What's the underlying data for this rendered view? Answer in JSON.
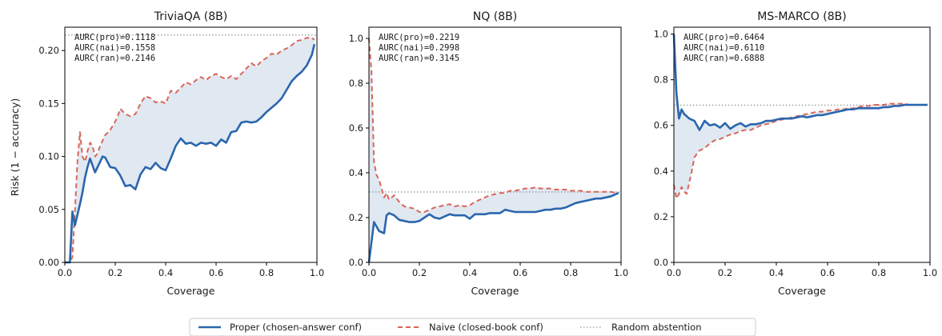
{
  "colors": {
    "proper": "#2b66ad",
    "naive": "#d9665a",
    "random": "#999999",
    "fill": "#dde6f1"
  },
  "legend": {
    "proper": "Proper (chosen-answer conf)",
    "naive": "Naive (closed-book conf)",
    "random": "Random abstention"
  },
  "chart_data": [
    {
      "type": "line",
      "title": "TriviaQA (8B)",
      "xlabel": "Coverage",
      "ylabel": "Risk (1 − accuracy)",
      "xlim": [
        0,
        1.0
      ],
      "ylim": [
        0,
        0.222
      ],
      "xticks": [
        "0.0",
        "0.2",
        "0.4",
        "0.6",
        "0.8",
        "1.0"
      ],
      "yticks": [
        0,
        0.05,
        0.1,
        0.15,
        0.2
      ],
      "ytick_labels": [
        "0.00",
        "0.05",
        "0.10",
        "0.15",
        "0.20"
      ],
      "random_risk": 0.2146,
      "annotations": [
        "AURC(pro)=0.1118",
        "AURC(nai)=0.1558",
        "AURC(ran)=0.2146"
      ],
      "series": [
        {
          "name": "Proper (chosen-answer conf)",
          "key": "proper",
          "x": [
            0.0,
            0.02,
            0.03,
            0.04,
            0.05,
            0.06,
            0.07,
            0.08,
            0.09,
            0.1,
            0.12,
            0.14,
            0.15,
            0.16,
            0.18,
            0.2,
            0.22,
            0.24,
            0.26,
            0.28,
            0.29,
            0.3,
            0.32,
            0.34,
            0.36,
            0.38,
            0.4,
            0.42,
            0.44,
            0.46,
            0.48,
            0.5,
            0.52,
            0.54,
            0.56,
            0.58,
            0.6,
            0.62,
            0.64,
            0.66,
            0.68,
            0.7,
            0.72,
            0.74,
            0.76,
            0.78,
            0.8,
            0.82,
            0.84,
            0.86,
            0.88,
            0.9,
            0.92,
            0.94,
            0.96,
            0.98,
            0.99
          ],
          "y": [
            0.0,
            0.0,
            0.048,
            0.035,
            0.045,
            0.055,
            0.066,
            0.08,
            0.09,
            0.098,
            0.085,
            0.095,
            0.1,
            0.099,
            0.09,
            0.089,
            0.082,
            0.072,
            0.073,
            0.069,
            0.076,
            0.083,
            0.09,
            0.088,
            0.094,
            0.089,
            0.087,
            0.098,
            0.11,
            0.117,
            0.112,
            0.113,
            0.11,
            0.113,
            0.112,
            0.113,
            0.11,
            0.116,
            0.113,
            0.123,
            0.124,
            0.132,
            0.133,
            0.132,
            0.133,
            0.137,
            0.142,
            0.146,
            0.15,
            0.155,
            0.163,
            0.171,
            0.176,
            0.18,
            0.186,
            0.196,
            0.206
          ]
        },
        {
          "name": "Naive (closed-book conf)",
          "key": "naive",
          "x": [
            0.0,
            0.02,
            0.03,
            0.04,
            0.05,
            0.06,
            0.07,
            0.08,
            0.09,
            0.1,
            0.11,
            0.12,
            0.13,
            0.14,
            0.15,
            0.16,
            0.18,
            0.2,
            0.21,
            0.22,
            0.24,
            0.26,
            0.28,
            0.3,
            0.32,
            0.34,
            0.36,
            0.38,
            0.4,
            0.42,
            0.44,
            0.46,
            0.48,
            0.5,
            0.52,
            0.54,
            0.56,
            0.58,
            0.6,
            0.62,
            0.64,
            0.66,
            0.68,
            0.7,
            0.72,
            0.74,
            0.76,
            0.78,
            0.8,
            0.82,
            0.84,
            0.86,
            0.88,
            0.9,
            0.92,
            0.94,
            0.96,
            0.98,
            0.99
          ],
          "y": [
            0.0,
            0.0,
            0.005,
            0.048,
            0.095,
            0.123,
            0.1,
            0.095,
            0.105,
            0.113,
            0.11,
            0.1,
            0.103,
            0.11,
            0.115,
            0.12,
            0.125,
            0.133,
            0.138,
            0.145,
            0.14,
            0.138,
            0.14,
            0.15,
            0.157,
            0.155,
            0.151,
            0.152,
            0.15,
            0.162,
            0.16,
            0.165,
            0.17,
            0.168,
            0.172,
            0.175,
            0.172,
            0.176,
            0.178,
            0.175,
            0.173,
            0.176,
            0.173,
            0.178,
            0.183,
            0.188,
            0.185,
            0.19,
            0.193,
            0.197,
            0.196,
            0.2,
            0.202,
            0.205,
            0.209,
            0.21,
            0.212,
            0.212,
            0.21
          ]
        }
      ]
    },
    {
      "type": "line",
      "title": "NQ (8B)",
      "xlabel": "Coverage",
      "ylabel": "",
      "xlim": [
        0,
        1.0
      ],
      "ylim": [
        0,
        1.05
      ],
      "xticks": [
        "0.0",
        "0.2",
        "0.4",
        "0.6",
        "0.8",
        "1.0"
      ],
      "yticks": [
        0,
        0.2,
        0.4,
        0.6,
        0.8,
        1.0
      ],
      "ytick_labels": [
        "0.0",
        "0.2",
        "0.4",
        "0.6",
        "0.8",
        "1.0"
      ],
      "random_risk": 0.3145,
      "annotations": [
        "AURC(pro)=0.2219",
        "AURC(nai)=0.2998",
        "AURC(ran)=0.3145"
      ],
      "series": [
        {
          "name": "Proper (chosen-answer conf)",
          "key": "proper",
          "x": [
            0.0,
            0.02,
            0.04,
            0.06,
            0.07,
            0.08,
            0.1,
            0.12,
            0.14,
            0.16,
            0.18,
            0.2,
            0.22,
            0.24,
            0.26,
            0.28,
            0.3,
            0.32,
            0.34,
            0.36,
            0.38,
            0.4,
            0.42,
            0.44,
            0.46,
            0.48,
            0.5,
            0.52,
            0.54,
            0.56,
            0.58,
            0.6,
            0.62,
            0.64,
            0.66,
            0.68,
            0.7,
            0.72,
            0.74,
            0.76,
            0.78,
            0.8,
            0.82,
            0.84,
            0.86,
            0.88,
            0.9,
            0.92,
            0.94,
            0.96,
            0.98,
            0.99
          ],
          "y": [
            0.0,
            0.18,
            0.14,
            0.13,
            0.21,
            0.22,
            0.21,
            0.19,
            0.185,
            0.18,
            0.18,
            0.185,
            0.2,
            0.215,
            0.2,
            0.195,
            0.205,
            0.215,
            0.21,
            0.21,
            0.21,
            0.195,
            0.215,
            0.215,
            0.215,
            0.22,
            0.22,
            0.22,
            0.235,
            0.23,
            0.225,
            0.225,
            0.225,
            0.225,
            0.225,
            0.23,
            0.235,
            0.235,
            0.24,
            0.24,
            0.245,
            0.255,
            0.265,
            0.27,
            0.275,
            0.28,
            0.285,
            0.285,
            0.29,
            0.295,
            0.305,
            0.31
          ]
        },
        {
          "name": "Naive (closed-book conf)",
          "key": "naive",
          "x": [
            0.0,
            0.01,
            0.02,
            0.03,
            0.04,
            0.05,
            0.06,
            0.07,
            0.08,
            0.1,
            0.12,
            0.14,
            0.16,
            0.18,
            0.2,
            0.22,
            0.24,
            0.26,
            0.28,
            0.3,
            0.32,
            0.34,
            0.36,
            0.38,
            0.4,
            0.42,
            0.44,
            0.46,
            0.48,
            0.5,
            0.52,
            0.54,
            0.56,
            0.58,
            0.6,
            0.62,
            0.64,
            0.66,
            0.68,
            0.7,
            0.72,
            0.74,
            0.76,
            0.78,
            0.8,
            0.82,
            0.84,
            0.86,
            0.88,
            0.9,
            0.92,
            0.94,
            0.96,
            0.98,
            0.99
          ],
          "y": [
            1.0,
            0.85,
            0.45,
            0.39,
            0.37,
            0.33,
            0.29,
            0.31,
            0.28,
            0.3,
            0.27,
            0.25,
            0.245,
            0.24,
            0.225,
            0.225,
            0.235,
            0.245,
            0.25,
            0.255,
            0.26,
            0.25,
            0.255,
            0.25,
            0.255,
            0.27,
            0.28,
            0.29,
            0.3,
            0.305,
            0.31,
            0.31,
            0.32,
            0.32,
            0.325,
            0.33,
            0.33,
            0.335,
            0.33,
            0.33,
            0.33,
            0.325,
            0.325,
            0.325,
            0.32,
            0.32,
            0.32,
            0.315,
            0.315,
            0.315,
            0.315,
            0.315,
            0.315,
            0.31,
            0.31
          ]
        }
      ]
    },
    {
      "type": "line",
      "title": "MS-MARCO (8B)",
      "xlabel": "Coverage",
      "ylabel": "",
      "xlim": [
        0,
        1.0
      ],
      "ylim": [
        0,
        1.03
      ],
      "xticks": [
        "0.0",
        "0.2",
        "0.4",
        "0.6",
        "0.8",
        "1.0"
      ],
      "yticks": [
        0,
        0.2,
        0.4,
        0.6,
        0.8,
        1.0
      ],
      "ytick_labels": [
        "0.0",
        "0.2",
        "0.4",
        "0.6",
        "0.8",
        "1.0"
      ],
      "random_risk": 0.6888,
      "annotations": [
        "AURC(pro)=0.6464",
        "AURC(nai)=0.6110",
        "AURC(ran)=0.6888"
      ],
      "series": [
        {
          "name": "Proper (chosen-answer conf)",
          "key": "proper",
          "x": [
            0.0,
            0.01,
            0.02,
            0.03,
            0.04,
            0.05,
            0.06,
            0.08,
            0.1,
            0.12,
            0.14,
            0.16,
            0.18,
            0.2,
            0.22,
            0.24,
            0.26,
            0.28,
            0.3,
            0.32,
            0.34,
            0.36,
            0.38,
            0.4,
            0.42,
            0.44,
            0.46,
            0.48,
            0.5,
            0.52,
            0.54,
            0.56,
            0.58,
            0.6,
            0.62,
            0.64,
            0.66,
            0.68,
            0.7,
            0.72,
            0.74,
            0.76,
            0.78,
            0.8,
            0.82,
            0.84,
            0.86,
            0.88,
            0.9,
            0.92,
            0.94,
            0.96,
            0.98,
            0.99
          ],
          "y": [
            1.0,
            0.74,
            0.63,
            0.67,
            0.65,
            0.64,
            0.63,
            0.62,
            0.58,
            0.62,
            0.6,
            0.605,
            0.59,
            0.61,
            0.585,
            0.6,
            0.61,
            0.595,
            0.605,
            0.605,
            0.61,
            0.62,
            0.62,
            0.625,
            0.63,
            0.63,
            0.63,
            0.635,
            0.64,
            0.635,
            0.64,
            0.645,
            0.645,
            0.65,
            0.655,
            0.66,
            0.665,
            0.67,
            0.67,
            0.675,
            0.675,
            0.675,
            0.675,
            0.675,
            0.68,
            0.68,
            0.685,
            0.685,
            0.69,
            0.69,
            0.69,
            0.69,
            0.69,
            0.69
          ]
        },
        {
          "name": "Naive (closed-book conf)",
          "key": "naive",
          "x": [
            0.0,
            0.01,
            0.02,
            0.03,
            0.04,
            0.05,
            0.06,
            0.07,
            0.08,
            0.1,
            0.12,
            0.14,
            0.16,
            0.18,
            0.2,
            0.22,
            0.24,
            0.26,
            0.28,
            0.3,
            0.32,
            0.34,
            0.36,
            0.38,
            0.4,
            0.42,
            0.44,
            0.46,
            0.48,
            0.5,
            0.52,
            0.54,
            0.56,
            0.58,
            0.6,
            0.62,
            0.64,
            0.66,
            0.68,
            0.7,
            0.72,
            0.74,
            0.76,
            0.78,
            0.8,
            0.82,
            0.84,
            0.86,
            0.88,
            0.9,
            0.92,
            0.94,
            0.96,
            0.98,
            0.99
          ],
          "y": [
            0.34,
            0.28,
            0.3,
            0.33,
            0.31,
            0.3,
            0.35,
            0.4,
            0.46,
            0.49,
            0.5,
            0.52,
            0.535,
            0.54,
            0.55,
            0.56,
            0.565,
            0.575,
            0.58,
            0.58,
            0.59,
            0.6,
            0.605,
            0.61,
            0.62,
            0.625,
            0.63,
            0.635,
            0.64,
            0.645,
            0.65,
            0.655,
            0.66,
            0.66,
            0.665,
            0.665,
            0.67,
            0.67,
            0.675,
            0.675,
            0.68,
            0.685,
            0.685,
            0.69,
            0.69,
            0.69,
            0.695,
            0.695,
            0.695,
            0.695,
            0.69,
            0.69,
            0.69,
            0.69,
            0.69
          ]
        }
      ]
    }
  ]
}
